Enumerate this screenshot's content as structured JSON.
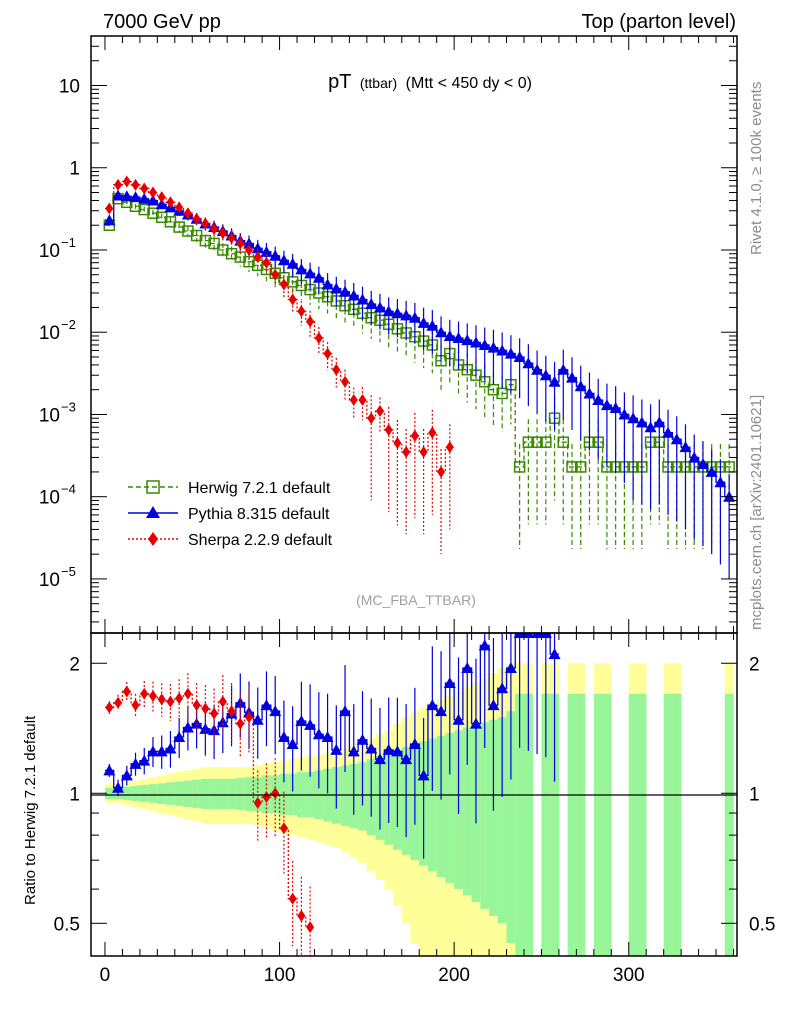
{
  "header": {
    "left": "7000 GeV pp",
    "right": "Top (parton level)"
  },
  "side_labels": {
    "rivet": "Rivet 4.1.0, ≥ 100k events",
    "mcplots": "mcplots.cern.ch [arXiv:2401.10621]"
  },
  "chart_data": [
    {
      "id": "main",
      "type": "line",
      "yscale": "log",
      "title": "pT (ttbar) (Mtt < 450 dy < 0)",
      "title_main": "pT",
      "title_small": "(ttbar)",
      "title_rest": "(Mtt < 450 dy < 0)",
      "analysis": "(MC_FBA_TTBAR)",
      "xlim": [
        -8,
        362
      ],
      "ylim": [
        2.2e-06,
        40
      ],
      "y_ticks": [
        {
          "value": 10,
          "label": "10"
        },
        {
          "value": 1,
          "label": "1"
        },
        {
          "value": 0.1,
          "base": "10",
          "exp": "−1"
        },
        {
          "value": 0.01,
          "base": "10",
          "exp": "−2"
        },
        {
          "value": 0.001,
          "base": "10",
          "exp": "−3"
        },
        {
          "value": 0.0001,
          "base": "10",
          "exp": "−4"
        },
        {
          "value": 1e-05,
          "base": "10",
          "exp": "−5"
        }
      ],
      "series": [
        {
          "name": "Herwig 7.2.1 default",
          "color": "#3a8a00",
          "marker": "open-square",
          "line": "dashed",
          "x": [
            2.5,
            7.5,
            12.5,
            17.5,
            22.5,
            27.5,
            32.5,
            37.5,
            42.5,
            47.5,
            52.5,
            57.5,
            62.5,
            67.5,
            72.5,
            77.5,
            82.5,
            87.5,
            92.5,
            97.5,
            102.5,
            107.5,
            112.5,
            117.5,
            122.5,
            127.5,
            132.5,
            137.5,
            142.5,
            147.5,
            152.5,
            157.5,
            162.5,
            167.5,
            172.5,
            177.5,
            182.5,
            187.5,
            192.5,
            197.5,
            202.5,
            207.5,
            212.5,
            217.5,
            222.5,
            227.5,
            232.5,
            237.5,
            242.5,
            247.5,
            252.5,
            257.5,
            262.5,
            267.5,
            272.5,
            277.5,
            282.5,
            287.5,
            292.5,
            297.5,
            302.5,
            307.5,
            312.5,
            317.5,
            322.5,
            327.5,
            332.5,
            337.5,
            342.5,
            347.5,
            352.5,
            357.5
          ],
          "y": [
            0.2,
            0.42,
            0.38,
            0.34,
            0.31,
            0.28,
            0.25,
            0.22,
            0.19,
            0.17,
            0.15,
            0.13,
            0.12,
            0.1,
            0.09,
            0.082,
            0.072,
            0.065,
            0.058,
            0.052,
            0.046,
            0.041,
            0.037,
            0.033,
            0.03,
            0.027,
            0.024,
            0.021,
            0.019,
            0.017,
            0.015,
            0.014,
            0.0125,
            0.011,
            0.0098,
            0.0088,
            0.0078,
            0.007,
            0.0045,
            0.0055,
            0.004,
            0.0035,
            0.003,
            0.0025,
            0.002,
            0.0018,
            0.0023,
            0.00023,
            0.00046,
            0.00046,
            0.00046,
            0.0009,
            0.00046,
            0.00023,
            0.00023,
            0.00046,
            0.00046,
            0.00023,
            0.00023,
            0.00023,
            0.00023,
            0.00023,
            0.00046,
            0.00046,
            0.00023,
            0.00023,
            0.00023,
            0.00023,
            0.00023,
            0.00023,
            0.00023,
            0.00023
          ]
        },
        {
          "name": "Pythia 8.315 default",
          "color": "#0000e0",
          "marker": "filled-triangle",
          "line": "solid",
          "x": [
            2.5,
            7.5,
            12.5,
            17.5,
            22.5,
            27.5,
            32.5,
            37.5,
            42.5,
            47.5,
            52.5,
            57.5,
            62.5,
            67.5,
            72.5,
            77.5,
            82.5,
            87.5,
            92.5,
            97.5,
            102.5,
            107.5,
            112.5,
            117.5,
            122.5,
            127.5,
            132.5,
            137.5,
            142.5,
            147.5,
            152.5,
            157.5,
            162.5,
            167.5,
            172.5,
            177.5,
            182.5,
            187.5,
            192.5,
            197.5,
            202.5,
            207.5,
            212.5,
            217.5,
            222.5,
            227.5,
            232.5,
            237.5,
            242.5,
            247.5,
            252.5,
            257.5,
            262.5,
            267.5,
            272.5,
            277.5,
            282.5,
            287.5,
            292.5,
            297.5,
            302.5,
            307.5,
            312.5,
            317.5,
            322.5,
            327.5,
            332.5,
            337.5,
            342.5,
            347.5,
            352.5,
            357.5
          ],
          "y": [
            0.23,
            0.46,
            0.45,
            0.44,
            0.42,
            0.4,
            0.36,
            0.33,
            0.3,
            0.27,
            0.24,
            0.21,
            0.19,
            0.17,
            0.15,
            0.13,
            0.12,
            0.105,
            0.095,
            0.085,
            0.075,
            0.068,
            0.058,
            0.052,
            0.046,
            0.038,
            0.034,
            0.031,
            0.028,
            0.025,
            0.022,
            0.02,
            0.018,
            0.017,
            0.016,
            0.015,
            0.013,
            0.012,
            0.01,
            0.009,
            0.0085,
            0.008,
            0.0075,
            0.007,
            0.0065,
            0.006,
            0.0055,
            0.005,
            0.0042,
            0.0035,
            0.003,
            0.0025,
            0.0035,
            0.0028,
            0.0022,
            0.0018,
            0.0015,
            0.0013,
            0.0012,
            0.001,
            0.0009,
            0.0008,
            0.0007,
            0.0008,
            0.0006,
            0.0005,
            0.0004,
            0.0003,
            0.00025,
            0.0002,
            0.00015,
            0.0001
          ]
        },
        {
          "name": "Sherpa 2.2.9 default",
          "color": "#e80000",
          "marker": "filled-diamond",
          "line": "dotted",
          "x": [
            2.5,
            7.5,
            12.5,
            17.5,
            22.5,
            27.5,
            32.5,
            37.5,
            42.5,
            47.5,
            52.5,
            57.5,
            62.5,
            67.5,
            72.5,
            77.5,
            82.5,
            87.5,
            92.5,
            97.5,
            102.5,
            107.5,
            112.5,
            117.5,
            122.5,
            127.5,
            132.5,
            137.5,
            142.5,
            147.5,
            152.5,
            157.5,
            162.5,
            167.5,
            172.5,
            177.5,
            182.5,
            187.5,
            192.5,
            197.5
          ],
          "y": [
            0.32,
            0.62,
            0.68,
            0.62,
            0.56,
            0.5,
            0.44,
            0.38,
            0.33,
            0.28,
            0.24,
            0.21,
            0.18,
            0.16,
            0.14,
            0.12,
            0.1,
            0.082,
            0.07,
            0.05,
            0.038,
            0.025,
            0.018,
            0.0135,
            0.0085,
            0.0055,
            0.0035,
            0.0025,
            0.0015,
            0.0015,
            0.0009,
            0.0011,
            0.00065,
            0.00045,
            0.00035,
            0.00055,
            0.00035,
            0.0006,
            0.0002,
            0.0004
          ]
        }
      ]
    },
    {
      "id": "ratio",
      "type": "line",
      "yscale": "log",
      "ylabel": "Ratio to Herwig 7.2.1 default",
      "xlim": [
        -8,
        362
      ],
      "ylim": [
        0.42,
        2.35
      ],
      "x_ticks": [
        0,
        100,
        200,
        300
      ],
      "y_ticks": [
        0.5,
        1,
        2
      ],
      "reference": 1,
      "band_edges_x": [
        0,
        5,
        10,
        15,
        20,
        25,
        30,
        35,
        40,
        45,
        50,
        55,
        60,
        65,
        70,
        75,
        80,
        85,
        90,
        95,
        100,
        105,
        110,
        115,
        120,
        125,
        130,
        135,
        140,
        145,
        150,
        155,
        160,
        165,
        170,
        175,
        180,
        185,
        190,
        195,
        200,
        205,
        210,
        215,
        220,
        225,
        230,
        235,
        240,
        245,
        250,
        255,
        260,
        265,
        270,
        275,
        280,
        285,
        290,
        295,
        300,
        305,
        310,
        315,
        320,
        325,
        330,
        335,
        340,
        345,
        350,
        355,
        360
      ],
      "band_yellow": [
        0.05,
        0.05,
        0.06,
        0.07,
        0.08,
        0.09,
        0.1,
        0.11,
        0.12,
        0.13,
        0.14,
        0.15,
        0.15,
        0.15,
        0.15,
        0.15,
        0.15,
        0.16,
        0.17,
        0.18,
        0.19,
        0.2,
        0.21,
        0.22,
        0.23,
        0.24,
        0.25,
        0.27,
        0.29,
        0.31,
        0.34,
        0.37,
        0.4,
        0.45,
        0.5,
        0.55,
        0.58,
        0.62,
        0.65,
        0.68,
        0.72,
        0.76,
        0.8,
        0.85,
        0.9,
        0.95,
        1,
        1,
        1,
        1,
        1,
        1,
        1,
        1,
        1,
        1,
        1,
        1,
        1,
        1,
        1,
        1,
        1,
        1,
        1,
        1,
        1,
        1,
        1,
        1,
        1,
        1
      ],
      "band_green": [
        0.03,
        0.03,
        0.035,
        0.04,
        0.045,
        0.05,
        0.055,
        0.06,
        0.065,
        0.07,
        0.075,
        0.08,
        0.08,
        0.08,
        0.08,
        0.085,
        0.09,
        0.09,
        0.1,
        0.1,
        0.11,
        0.11,
        0.12,
        0.12,
        0.13,
        0.14,
        0.15,
        0.16,
        0.17,
        0.18,
        0.2,
        0.22,
        0.24,
        0.26,
        0.28,
        0.3,
        0.32,
        0.34,
        0.36,
        0.38,
        0.4,
        0.42,
        0.44,
        0.46,
        0.48,
        0.5,
        0.55,
        0.7,
        0.7,
        0.7,
        0.7,
        0.7,
        0.7,
        0.7,
        0.7,
        0.7,
        0.7,
        0.7,
        0.7,
        0.7,
        0.7,
        0.7,
        0.7,
        0.7,
        0.7,
        0.7,
        0.7,
        0.7,
        0.7,
        0.7,
        0.7,
        0.7
      ],
      "band_gaps": [
        [
          247.5,
          250.5
        ],
        [
          260.5,
          263.5
        ],
        [
          275.5,
          279
        ],
        [
          291,
          300
        ],
        [
          311,
          321
        ],
        [
          331,
          355
        ]
      ],
      "series": [
        {
          "name": "Pythia 8.315 default",
          "color": "#0000e0",
          "marker": "filled-triangle",
          "x": [
            2.5,
            7.5,
            12.5,
            17.5,
            22.5,
            27.5,
            32.5,
            37.5,
            42.5,
            47.5,
            52.5,
            57.5,
            62.5,
            67.5,
            72.5,
            77.5,
            82.5,
            87.5,
            92.5,
            97.5,
            102.5,
            107.5,
            112.5,
            117.5,
            122.5,
            127.5,
            132.5,
            137.5,
            142.5,
            147.5,
            152.5,
            157.5,
            162.5,
            167.5,
            172.5,
            177.5,
            182.5,
            187.5,
            192.5,
            197.5,
            202.5,
            207.5,
            212.5,
            217.5,
            222.5,
            227.5,
            232.5,
            237.5,
            242.5,
            247.5,
            252.5,
            257.5
          ],
          "y": [
            1.13,
            1.03,
            1.1,
            1.17,
            1.19,
            1.25,
            1.25,
            1.27,
            1.35,
            1.42,
            1.45,
            1.41,
            1.4,
            1.46,
            1.53,
            1.62,
            1.54,
            1.48,
            1.6,
            1.55,
            1.35,
            1.3,
            1.47,
            1.44,
            1.37,
            1.35,
            1.26,
            1.55,
            1.25,
            1.33,
            1.27,
            1.2,
            1.26,
            1.25,
            1.2,
            1.3,
            1.1,
            1.6,
            1.55,
            1.8,
            1.48,
            1.95,
            1.45,
            2.2,
            1.6,
            1.75,
            1.95,
            2.35,
            2.35,
            2.35,
            2.35,
            2.1
          ]
        },
        {
          "name": "Sherpa 2.2.9 default",
          "color": "#e80000",
          "marker": "filled-diamond",
          "x": [
            2.5,
            7.5,
            12.5,
            17.5,
            22.5,
            27.5,
            32.5,
            37.5,
            42.5,
            47.5,
            52.5,
            57.5,
            62.5,
            67.5,
            72.5,
            77.5,
            82.5,
            87.5,
            92.5,
            97.5,
            102.5,
            107.5,
            112.5,
            117.5
          ],
          "y": [
            1.58,
            1.62,
            1.72,
            1.6,
            1.7,
            1.68,
            1.65,
            1.63,
            1.66,
            1.7,
            1.6,
            1.57,
            1.53,
            1.63,
            1.55,
            1.45,
            1.5,
            0.95,
            0.98,
            1.0,
            0.83,
            0.57,
            0.52,
            0.49
          ]
        }
      ]
    }
  ]
}
